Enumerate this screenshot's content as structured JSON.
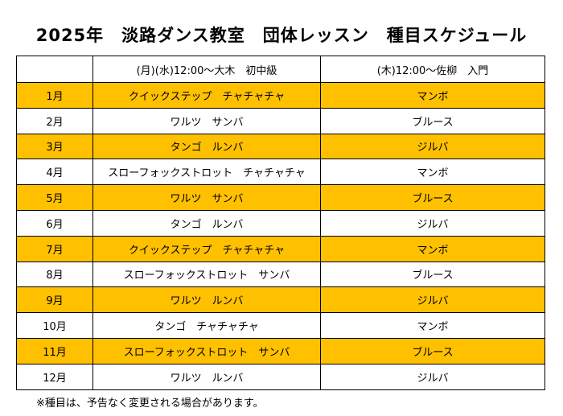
{
  "title": "2025年　淡路ダンス教室　団体レッスン　種目スケジュール",
  "table": {
    "headers": [
      "",
      "(月)(水)12:00～大木　初中級",
      "(木)12:00～佐柳　入門"
    ],
    "rows": [
      {
        "month": "1月",
        "a": "クイックステップ　チャチャチャ",
        "b": "マンボ",
        "highlight": true
      },
      {
        "month": "2月",
        "a": "ワルツ　サンバ",
        "b": "ブルース",
        "highlight": false
      },
      {
        "month": "3月",
        "a": "タンゴ　ルンバ",
        "b": "ジルバ",
        "highlight": true
      },
      {
        "month": "4月",
        "a": "スローフォックストロット　チャチャチャ",
        "b": "マンボ",
        "highlight": false
      },
      {
        "month": "5月",
        "a": "ワルツ　サンバ",
        "b": "ブルース",
        "highlight": true
      },
      {
        "month": "6月",
        "a": "タンゴ　ルンバ",
        "b": "ジルバ",
        "highlight": false
      },
      {
        "month": "7月",
        "a": "クイックステップ　チャチャチャ",
        "b": "マンボ",
        "highlight": true
      },
      {
        "month": "8月",
        "a": "スローフォックストロット　サンバ",
        "b": "ブルース",
        "highlight": false
      },
      {
        "month": "9月",
        "a": "ワルツ　ルンバ",
        "b": "ジルバ",
        "highlight": true
      },
      {
        "month": "10月",
        "a": "タンゴ　チャチャチャ",
        "b": "マンボ",
        "highlight": false
      },
      {
        "month": "11月",
        "a": "スローフォックストロット　サンバ",
        "b": "ブルース",
        "highlight": true
      },
      {
        "month": "12月",
        "a": "ワルツ　ルンバ",
        "b": "ジルバ",
        "highlight": false
      }
    ]
  },
  "note": "※種目は、予告なく変更される場合があります。",
  "colors": {
    "highlight_row": "#ffc000",
    "plain_row": "#ffffff",
    "border": "#000000"
  }
}
